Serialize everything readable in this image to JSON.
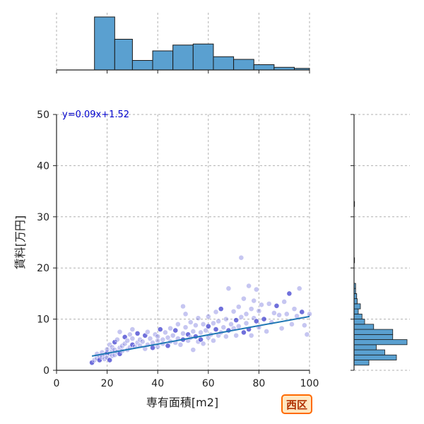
{
  "badge": {
    "label": "西区"
  },
  "chart_data": {
    "type": "scatter",
    "xlabel": "専有面積[m2]",
    "ylabel": "賃料[万円]",
    "xlim": [
      0,
      100
    ],
    "ylim": [
      0,
      50
    ],
    "x_ticks": [
      0,
      20,
      40,
      60,
      80,
      100
    ],
    "y_ticks": [
      0,
      10,
      20,
      30,
      40,
      50
    ],
    "grid": true,
    "regression": {
      "equation": "y=0.09x+1.52",
      "slope": 0.09,
      "intercept": 1.52,
      "x_range": [
        14,
        100
      ],
      "color": "#1f77b4"
    },
    "point_color": "#3333cc",
    "bar_color": "#5aa0d0",
    "points": [
      [
        14,
        1.5
      ],
      [
        15,
        2.0
      ],
      [
        16,
        2.4
      ],
      [
        16,
        3.2
      ],
      [
        17,
        2.8
      ],
      [
        17,
        2.0
      ],
      [
        18,
        3.5
      ],
      [
        18,
        2.6
      ],
      [
        19,
        3.0
      ],
      [
        19,
        2.2
      ],
      [
        20,
        3.4
      ],
      [
        20,
        4.1
      ],
      [
        20,
        2.5
      ],
      [
        21,
        3.2
      ],
      [
        21,
        5.0
      ],
      [
        21,
        2.0
      ],
      [
        22,
        3.8
      ],
      [
        22,
        4.5
      ],
      [
        22,
        2.8
      ],
      [
        23,
        3.0
      ],
      [
        23,
        5.5
      ],
      [
        23,
        4.0
      ],
      [
        24,
        3.6
      ],
      [
        24,
        6.0
      ],
      [
        25,
        4.4
      ],
      [
        25,
        3.2
      ],
      [
        25,
        7.5
      ],
      [
        26,
        4.8
      ],
      [
        26,
        3.8
      ],
      [
        27,
        5.2
      ],
      [
        27,
        6.5
      ],
      [
        28,
        4.0
      ],
      [
        28,
        5.8
      ],
      [
        29,
        7.0
      ],
      [
        29,
        4.5
      ],
      [
        30,
        5.0
      ],
      [
        30,
        6.2
      ],
      [
        30,
        8.0
      ],
      [
        31,
        4.6
      ],
      [
        32,
        5.4
      ],
      [
        32,
        7.2
      ],
      [
        33,
        4.8
      ],
      [
        33,
        6.0
      ],
      [
        34,
        5.6
      ],
      [
        35,
        4.2
      ],
      [
        35,
        6.8
      ],
      [
        36,
        5.0
      ],
      [
        36,
        7.5
      ],
      [
        37,
        6.2
      ],
      [
        38,
        5.4
      ],
      [
        38,
        4.4
      ],
      [
        39,
        7.0
      ],
      [
        40,
        5.8
      ],
      [
        40,
        6.6
      ],
      [
        40,
        4.6
      ],
      [
        41,
        8.0
      ],
      [
        42,
        6.0
      ],
      [
        42,
        5.2
      ],
      [
        43,
        7.4
      ],
      [
        44,
        6.4
      ],
      [
        44,
        4.8
      ],
      [
        45,
        5.6
      ],
      [
        45,
        8.2
      ],
      [
        46,
        6.8
      ],
      [
        47,
        5.4
      ],
      [
        47,
        7.8
      ],
      [
        48,
        6.2
      ],
      [
        48,
        9.0
      ],
      [
        49,
        5.0
      ],
      [
        50,
        7.2
      ],
      [
        50,
        6.0
      ],
      [
        50,
        12.5
      ],
      [
        51,
        8.4
      ],
      [
        51,
        11.0
      ],
      [
        52,
        5.8
      ],
      [
        52,
        7.0
      ],
      [
        53,
        6.4
      ],
      [
        53,
        9.4
      ],
      [
        54,
        4.0
      ],
      [
        54,
        7.6
      ],
      [
        55,
        6.6
      ],
      [
        55,
        8.8
      ],
      [
        56,
        5.6
      ],
      [
        56,
        10.2
      ],
      [
        57,
        7.4
      ],
      [
        57,
        6.0
      ],
      [
        58,
        9.0
      ],
      [
        58,
        5.2
      ],
      [
        59,
        7.8
      ],
      [
        60,
        6.4
      ],
      [
        60,
        8.6
      ],
      [
        60,
        10.5
      ],
      [
        61,
        7.0
      ],
      [
        62,
        9.2
      ],
      [
        62,
        5.8
      ],
      [
        63,
        8.0
      ],
      [
        63,
        11.4
      ],
      [
        64,
        6.8
      ],
      [
        64,
        9.6
      ],
      [
        65,
        7.4
      ],
      [
        65,
        12.0
      ],
      [
        66,
        8.4
      ],
      [
        67,
        6.6
      ],
      [
        67,
        10.0
      ],
      [
        68,
        16.0
      ],
      [
        68,
        7.8
      ],
      [
        69,
        9.0
      ],
      [
        70,
        8.2
      ],
      [
        70,
        11.5
      ],
      [
        71,
        6.8
      ],
      [
        71,
        9.8
      ],
      [
        72,
        12.4
      ],
      [
        72,
        8.6
      ],
      [
        73,
        22.0
      ],
      [
        73,
        10.4
      ],
      [
        74,
        7.4
      ],
      [
        74,
        14.0
      ],
      [
        75,
        9.2
      ],
      [
        75,
        11.0
      ],
      [
        76,
        16.5
      ],
      [
        76,
        8.0
      ],
      [
        77,
        12.0
      ],
      [
        77,
        6.8
      ],
      [
        78,
        10.2
      ],
      [
        78,
        13.6
      ],
      [
        79,
        9.6
      ],
      [
        79,
        15.8
      ],
      [
        80,
        8.4
      ],
      [
        80,
        11.6
      ],
      [
        81,
        12.8
      ],
      [
        82,
        10.0
      ],
      [
        83,
        7.6
      ],
      [
        84,
        13.0
      ],
      [
        85,
        9.4
      ],
      [
        86,
        11.2
      ],
      [
        87,
        12.6
      ],
      [
        88,
        10.8
      ],
      [
        89,
        8.2
      ],
      [
        90,
        13.4
      ],
      [
        91,
        11.0
      ],
      [
        92,
        15.0
      ],
      [
        93,
        9.0
      ],
      [
        94,
        12.0
      ],
      [
        95,
        10.6
      ],
      [
        96,
        16.0
      ],
      [
        97,
        11.4
      ],
      [
        98,
        8.8
      ],
      [
        99,
        7.0
      ],
      [
        100,
        11.0
      ]
    ],
    "x_hist": {
      "bins": [
        [
          15,
          23
        ],
        [
          23,
          30
        ],
        [
          30,
          38
        ],
        [
          38,
          46
        ],
        [
          46,
          54
        ],
        [
          54,
          62
        ],
        [
          62,
          70
        ],
        [
          70,
          78
        ],
        [
          78,
          86
        ],
        [
          86,
          94
        ],
        [
          94,
          100
        ]
      ],
      "heights": [
        1.0,
        0.58,
        0.18,
        0.36,
        0.47,
        0.49,
        0.25,
        0.2,
        0.1,
        0.05,
        0.03
      ]
    },
    "y_hist": {
      "bins": [
        [
          1,
          2
        ],
        [
          2,
          3
        ],
        [
          3,
          4
        ],
        [
          4,
          5
        ],
        [
          5,
          6
        ],
        [
          6,
          7
        ],
        [
          7,
          8
        ],
        [
          8,
          9
        ],
        [
          9,
          10
        ],
        [
          10,
          11
        ],
        [
          11,
          12
        ],
        [
          12,
          13
        ],
        [
          13,
          14
        ],
        [
          14,
          15
        ],
        [
          15,
          16
        ],
        [
          16,
          17
        ],
        [
          21,
          22
        ],
        [
          32,
          33
        ]
      ],
      "heights": [
        0.28,
        0.8,
        0.58,
        0.42,
        1.0,
        0.73,
        0.73,
        0.37,
        0.2,
        0.15,
        0.08,
        0.12,
        0.06,
        0.05,
        0.03,
        0.03,
        0.01,
        0.01
      ]
    }
  }
}
